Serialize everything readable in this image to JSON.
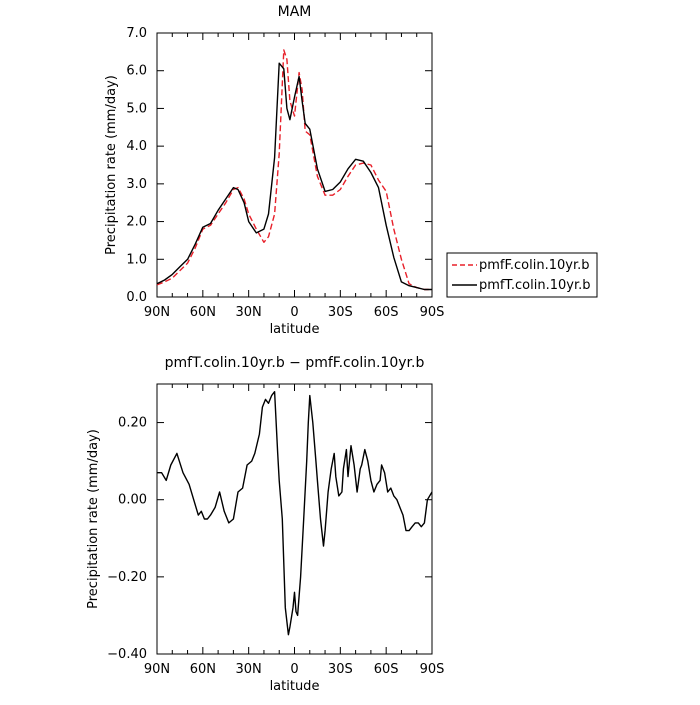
{
  "chart_data": [
    {
      "type": "line",
      "title": "MAM",
      "xlabel": "latitude",
      "ylabel": "Precipitation rate (mm/day)",
      "xlim": [
        90,
        -90
      ],
      "ylim": [
        0,
        7
      ],
      "xticks": [
        {
          "v": 90,
          "label": "90N"
        },
        {
          "v": 60,
          "label": "60N"
        },
        {
          "v": 30,
          "label": "30N"
        },
        {
          "v": 0,
          "label": "0"
        },
        {
          "v": -30,
          "label": "30S"
        },
        {
          "v": -60,
          "label": "60S"
        },
        {
          "v": -90,
          "label": "90S"
        }
      ],
      "yticks": [
        {
          "v": 0,
          "label": "0.0"
        },
        {
          "v": 1,
          "label": "1.0"
        },
        {
          "v": 2,
          "label": "2.0"
        },
        {
          "v": 3,
          "label": "3.0"
        },
        {
          "v": 4,
          "label": "4.0"
        },
        {
          "v": 5,
          "label": "5.0"
        },
        {
          "v": 6,
          "label": "6.0"
        },
        {
          "v": 7,
          "label": "7.0"
        }
      ],
      "legend_position": "right",
      "series": [
        {
          "name": "pmfF.colin.10yr.b",
          "color": "#e8202a",
          "dash": "dashed",
          "x": [
            90,
            85,
            80,
            75,
            70,
            65,
            60,
            55,
            50,
            45,
            40,
            37,
            33,
            30,
            25,
            20,
            17,
            13,
            10,
            7,
            5,
            3,
            0,
            -3,
            -5,
            -7,
            -10,
            -15,
            -20,
            -25,
            -30,
            -35,
            -40,
            -45,
            -50,
            -55,
            -60,
            -65,
            -70,
            -75,
            -80,
            -85,
            -90
          ],
          "y": [
            0.32,
            0.4,
            0.5,
            0.7,
            0.9,
            1.3,
            1.8,
            1.9,
            2.2,
            2.5,
            2.85,
            2.9,
            2.6,
            2.2,
            1.8,
            1.45,
            1.6,
            2.2,
            3.8,
            6.55,
            6.3,
            5.2,
            4.8,
            5.95,
            5.5,
            4.4,
            4.3,
            3.2,
            2.7,
            2.7,
            2.85,
            3.2,
            3.5,
            3.55,
            3.5,
            3.1,
            2.8,
            1.8,
            1.0,
            0.35,
            0.25,
            0.2,
            0.2
          ]
        },
        {
          "name": "pmfT.colin.10yr.b",
          "color": "#000000",
          "dash": "solid",
          "x": [
            90,
            85,
            80,
            75,
            70,
            65,
            60,
            55,
            50,
            45,
            40,
            37,
            33,
            30,
            25,
            20,
            17,
            13,
            10,
            7,
            5,
            3,
            0,
            -3,
            -5,
            -7,
            -10,
            -15,
            -20,
            -25,
            -30,
            -35,
            -40,
            -45,
            -50,
            -55,
            -60,
            -65,
            -70,
            -75,
            -80,
            -85,
            -90
          ],
          "y": [
            0.35,
            0.45,
            0.6,
            0.8,
            1.0,
            1.4,
            1.85,
            1.95,
            2.3,
            2.6,
            2.9,
            2.85,
            2.5,
            2.0,
            1.7,
            1.8,
            2.2,
            3.7,
            6.2,
            6.05,
            5.0,
            4.7,
            5.3,
            5.85,
            5.2,
            4.6,
            4.45,
            3.4,
            2.8,
            2.85,
            3.05,
            3.4,
            3.65,
            3.6,
            3.3,
            2.9,
            1.9,
            1.05,
            0.4,
            0.3,
            0.25,
            0.2,
            0.2
          ]
        }
      ]
    },
    {
      "type": "line",
      "title": "pmfT.colin.10yr.b − pmfF.colin.10yr.b",
      "xlabel": "latitude",
      "ylabel": "Precipitation rate (mm/day)",
      "xlim": [
        90,
        -90
      ],
      "ylim": [
        -0.4,
        0.3
      ],
      "xticks": [
        {
          "v": 90,
          "label": "90N"
        },
        {
          "v": 60,
          "label": "60N"
        },
        {
          "v": 30,
          "label": "30N"
        },
        {
          "v": 0,
          "label": "0"
        },
        {
          "v": -30,
          "label": "30S"
        },
        {
          "v": -60,
          "label": "60S"
        },
        {
          "v": -90,
          "label": "90S"
        }
      ],
      "yticks": [
        {
          "v": 0.2,
          "label": "0.20"
        },
        {
          "v": 0,
          "label": "0.00"
        },
        {
          "v": -0.2,
          "label": "−0.20"
        },
        {
          "v": -0.4,
          "label": "−0.40"
        }
      ],
      "series": [
        {
          "name": "",
          "color": "#000000",
          "dash": "solid",
          "x": [
            90,
            87,
            84,
            81,
            77,
            73,
            69,
            66,
            63,
            61,
            59,
            57,
            55,
            52,
            49,
            46,
            43,
            40,
            37,
            34,
            31,
            28,
            26,
            23,
            21,
            19,
            17,
            15,
            13,
            11,
            10,
            8,
            6,
            4,
            3,
            1,
            0,
            -1,
            -2,
            -4,
            -6,
            -8,
            -9,
            -10,
            -12,
            -14,
            -15,
            -17,
            -19,
            -20,
            -22,
            -24,
            -26,
            -27,
            -29,
            -31,
            -32,
            -34,
            -35,
            -37,
            -39,
            -41,
            -43,
            -44,
            -46,
            -48,
            -50,
            -52,
            -54,
            -56,
            -57,
            -59,
            -61,
            -63,
            -65,
            -67,
            -69,
            -71,
            -73,
            -75,
            -77,
            -79,
            -81,
            -83,
            -85,
            -87,
            -90
          ],
          "y": [
            0.07,
            0.07,
            0.05,
            0.09,
            0.12,
            0.07,
            0.04,
            0.0,
            -0.04,
            -0.03,
            -0.05,
            -0.05,
            -0.04,
            -0.02,
            0.02,
            -0.03,
            -0.06,
            -0.05,
            0.02,
            0.03,
            0.09,
            0.1,
            0.12,
            0.17,
            0.24,
            0.26,
            0.25,
            0.27,
            0.28,
            0.12,
            0.05,
            -0.05,
            -0.28,
            -0.35,
            -0.33,
            -0.28,
            -0.24,
            -0.29,
            -0.3,
            -0.2,
            -0.05,
            0.1,
            0.2,
            0.27,
            0.2,
            0.1,
            0.05,
            -0.05,
            -0.12,
            -0.08,
            0.02,
            0.08,
            0.12,
            0.06,
            0.01,
            0.02,
            0.08,
            0.13,
            0.06,
            0.14,
            0.09,
            0.02,
            0.08,
            0.09,
            0.13,
            0.1,
            0.05,
            0.02,
            0.04,
            0.05,
            0.09,
            0.07,
            0.02,
            0.03,
            0.01,
            0.0,
            -0.02,
            -0.04,
            -0.08,
            -0.08,
            -0.07,
            -0.06,
            -0.06,
            -0.07,
            -0.06,
            0.0,
            0.02
          ]
        }
      ]
    }
  ]
}
